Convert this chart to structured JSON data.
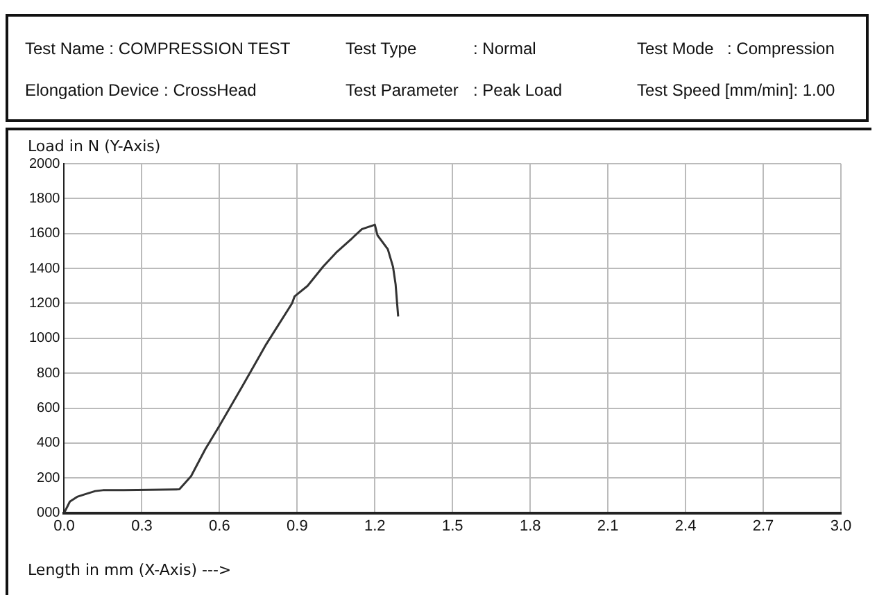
{
  "chart_data": {
    "type": "line",
    "ylabel": "Load in N (Y-Axis)",
    "xlabel": "Length in mm (X-Axis) --->",
    "annotations": [
      "Test Name : COMPRESSION TEST",
      "Test Type",
      "Test Mode",
      "Elongation Device : CrossHead",
      "Test Parameter",
      "Test Speed [mm/min]: 1.00",
      ": Normal",
      ": Compression",
      ": Peak Load"
    ],
    "x": [
      0,
      0.022,
      0.05,
      0.077,
      0.12,
      0.15,
      0.23,
      0.445,
      0.49,
      0.545,
      0.6,
      0.69,
      0.78,
      0.88,
      0.89,
      0.94,
      1.0,
      1.05,
      1.11,
      1.15,
      1.2,
      1.21,
      1.25,
      1.27,
      1.28,
      1.29
    ],
    "series": [
      {
        "color": "#333333",
        "values": [
          0,
          65,
          92,
          105,
          125,
          130,
          130,
          135,
          210,
          365,
          500,
          730,
          965,
          1200,
          1240,
          1300,
          1410,
          1490,
          1570,
          1625,
          1650,
          1590,
          1510,
          1410,
          1310,
          1125
        ]
      }
    ],
    "xlim": [
      0,
      3
    ],
    "xticks": [
      {
        "value": 0,
        "label": "0.0"
      },
      {
        "value": 0.3,
        "label": "0.3"
      },
      {
        "value": 0.6,
        "label": "0.6"
      },
      {
        "value": 0.9,
        "label": "0.9"
      },
      {
        "value": 1.2,
        "label": "1.2"
      },
      {
        "value": 1.5,
        "label": "1.5"
      },
      {
        "value": 1.8,
        "label": "1.8"
      },
      {
        "value": 2.1,
        "label": "2.1"
      },
      {
        "value": 2.4,
        "label": "2.4"
      },
      {
        "value": 2.7,
        "label": "2.7"
      },
      {
        "value": 3,
        "label": "3.0"
      }
    ],
    "ylim": [
      0,
      2000
    ],
    "yticks": [
      {
        "value": 0,
        "label": "000"
      },
      200,
      400,
      600,
      800,
      1000,
      1200,
      1400,
      1600,
      1800,
      2000
    ],
    "grid": true,
    "legend": false,
    "marker": "none",
    "line_style": "solid"
  }
}
